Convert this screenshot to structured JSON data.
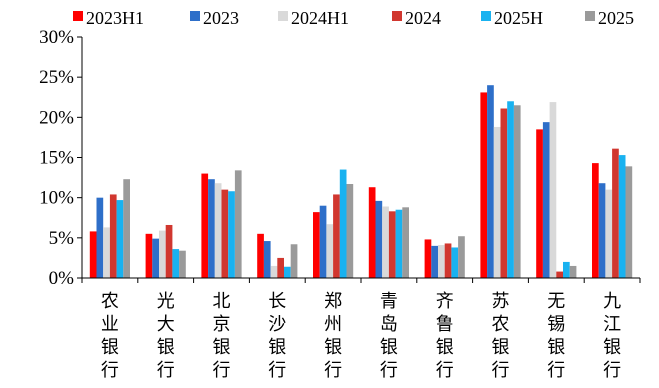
{
  "chart_data": {
    "type": "bar",
    "title": "",
    "xlabel": "",
    "ylabel": "",
    "ylim": [
      0,
      30
    ],
    "y_ticks": [
      "0%",
      "5%",
      "10%",
      "15%",
      "20%",
      "25%",
      "30%"
    ],
    "y_tick_values": [
      0,
      5,
      10,
      15,
      20,
      25,
      30
    ],
    "grid": false,
    "legend_position": "top",
    "categories": [
      "农业银行",
      "光大银行",
      "北京银行",
      "长沙银行",
      "郑州银行",
      "青岛银行",
      "齐鲁银行",
      "苏农银行",
      "无锡银行",
      "九江银行"
    ],
    "series": [
      {
        "name": "2023H1",
        "color": "#ff0000",
        "values": [
          5.8,
          5.5,
          13.0,
          5.5,
          8.2,
          11.3,
          4.8,
          23.1,
          18.5,
          14.3
        ]
      },
      {
        "name": "2023",
        "color": "#2e6fc9",
        "values": [
          10.0,
          4.9,
          12.3,
          4.6,
          9.0,
          9.6,
          4.0,
          24.0,
          19.4,
          11.8
        ]
      },
      {
        "name": "2024H1",
        "color": "#d9d9d9",
        "values": [
          6.3,
          5.9,
          11.8,
          1.5,
          6.7,
          8.9,
          4.1,
          18.8,
          21.9,
          11.0
        ]
      },
      {
        "name": "2024",
        "color": "#d1372f",
        "values": [
          10.4,
          6.6,
          11.0,
          2.5,
          10.4,
          8.3,
          4.3,
          21.1,
          0.8,
          16.1
        ]
      },
      {
        "name": "2025H",
        "color": "#19b2f0",
        "values": [
          9.7,
          3.6,
          10.8,
          1.4,
          13.5,
          8.5,
          3.8,
          22.0,
          2.0,
          15.3
        ]
      },
      {
        "name": "2025",
        "color": "#9a9a9a",
        "values": [
          12.3,
          3.4,
          13.4,
          4.2,
          11.7,
          8.8,
          5.2,
          21.5,
          1.5,
          13.9
        ]
      }
    ]
  }
}
